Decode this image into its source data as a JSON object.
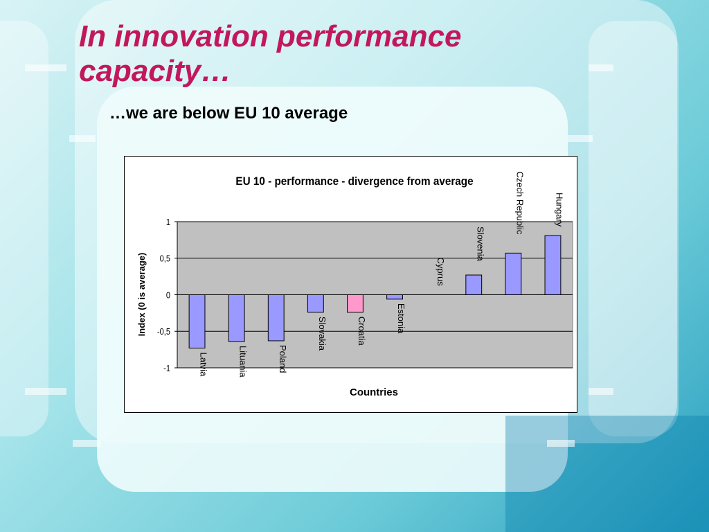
{
  "slide": {
    "title": "In innovation performance capacity…",
    "subtitle": "…we are below EU 10 average"
  },
  "chart_data": {
    "type": "bar",
    "title": "EU 10 - performance - divergence from average",
    "xlabel": "Countries",
    "ylabel": "Index (0 is average)",
    "ylim": [
      -1,
      1
    ],
    "yticks": [
      "1",
      "0,5",
      "0",
      "-0,5",
      "-1"
    ],
    "ytick_values": [
      1,
      0.5,
      0,
      -0.5,
      -1
    ],
    "grid": true,
    "categories": [
      "Latvia",
      "Lituania",
      "Poland",
      "Slovakia",
      "Croatia",
      "Estonia",
      "Cyprus",
      "Slovenia",
      "Czech Republic",
      "Hungary"
    ],
    "values": [
      -0.73,
      -0.64,
      -0.63,
      -0.24,
      -0.24,
      -0.06,
      0.0,
      0.27,
      0.57,
      0.81
    ],
    "highlight_category": "Croatia",
    "colors": {
      "bar": "#9999ff",
      "highlight": "#ff99cc",
      "plot_bg": "#c0c0c0",
      "grid": "#000000"
    }
  }
}
